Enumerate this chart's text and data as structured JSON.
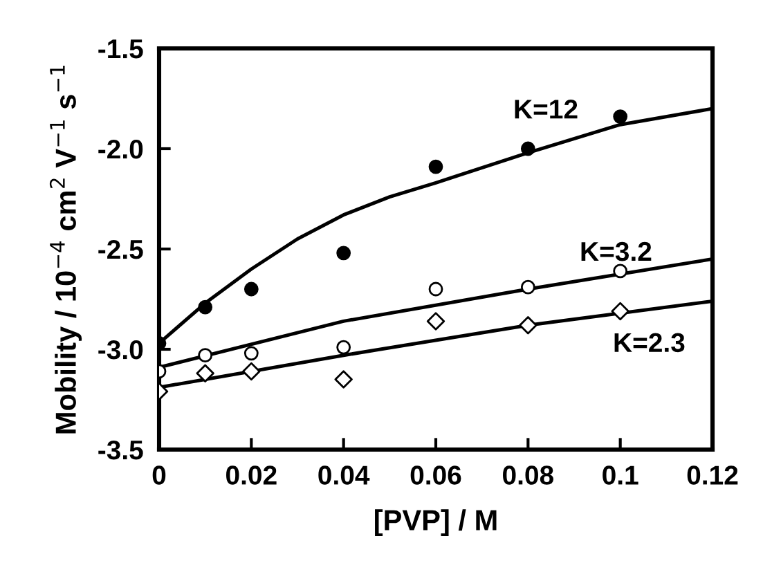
{
  "chart_data": {
    "type": "scatter",
    "xlabel": "[PVP] / M",
    "ylabel": "Mobility / 10$^{−4}$ cm$^{2}$ V$^{−1}$ s$^{−1}$",
    "xlim": [
      0,
      0.12
    ],
    "xticks": [
      0,
      0.02,
      0.04,
      0.06,
      0.08,
      0.1,
      0.12
    ],
    "ylim": [
      -3.5,
      -1.5
    ],
    "yticks": [
      {
        "value": -3.5,
        "label": "-3.5"
      },
      {
        "value": -3.0,
        "label": "-3.0"
      },
      {
        "value": -2.5,
        "label": "-2.5"
      },
      {
        "value": -2.0,
        "label": "-2.0"
      },
      {
        "value": -1.5,
        "label": "-1.5"
      }
    ],
    "grid": false,
    "legend": false,
    "series": [
      {
        "marker": "circle",
        "color": "#000000",
        "x": [
          0,
          0.01,
          0.02,
          0.04,
          0.06,
          0.08,
          0.1
        ],
        "values": [
          -2.97,
          -2.79,
          -2.7,
          -2.52,
          -2.09,
          -2.0,
          -1.84
        ]
      },
      {
        "marker": "circle",
        "color": "#ffffff",
        "x": [
          0,
          0.01,
          0.02,
          0.04,
          0.06,
          0.08,
          0.1
        ],
        "values": [
          -3.11,
          -3.03,
          -3.02,
          -2.99,
          -2.7,
          -2.69,
          -2.61
        ]
      },
      {
        "marker": "diamond",
        "color": "#ffffff",
        "x": [
          0,
          0.01,
          0.02,
          0.04,
          0.06,
          0.08,
          0.1
        ],
        "values": [
          -3.21,
          -3.12,
          -3.11,
          -3.15,
          -2.86,
          -2.88,
          -2.81
        ]
      },
      {
        "type": "line",
        "name": "K=12",
        "color": "#000000",
        "line_style": "solid",
        "x": [
          0,
          0.01,
          0.02,
          0.03,
          0.04,
          0.05,
          0.06,
          0.08,
          0.1,
          0.12
        ],
        "values": [
          -2.97,
          -2.77,
          -2.6,
          -2.45,
          -2.33,
          -2.24,
          -2.17,
          -2.02,
          -1.88,
          -1.8
        ]
      },
      {
        "type": "line",
        "name": "K=3.2",
        "color": "#000000",
        "line_style": "solid",
        "x": [
          0,
          0.04,
          0.08,
          0.12
        ],
        "values": [
          -3.09,
          -2.86,
          -2.7,
          -2.55
        ]
      },
      {
        "type": "line",
        "name": "K=2.3",
        "color": "#000000",
        "line_style": "solid",
        "x": [
          0,
          0.04,
          0.08,
          0.12
        ],
        "values": [
          -3.19,
          -3.03,
          -2.88,
          -2.76
        ]
      }
    ]
  }
}
